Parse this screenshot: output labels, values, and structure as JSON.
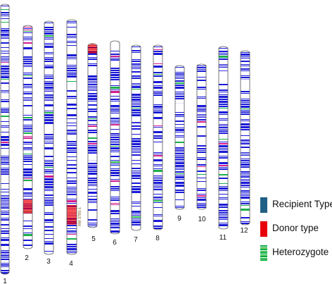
{
  "chromosomes": [
    {
      "label": "1",
      "introgressions": []
    },
    {
      "label": "2",
      "introgressions": [
        {
          "type": "donor",
          "from": 0.78,
          "to": 0.84
        }
      ]
    },
    {
      "label": "3",
      "introgressions": []
    },
    {
      "label": "4",
      "introgressions": [
        {
          "type": "donor",
          "from": 0.79,
          "to": 0.87
        }
      ],
      "marker_label": "RM 3785-1"
    },
    {
      "label": "5",
      "introgressions": [
        {
          "type": "donor",
          "from": 0.0,
          "to": 0.05
        }
      ]
    },
    {
      "label": "6",
      "introgressions": []
    },
    {
      "label": "7",
      "introgressions": []
    },
    {
      "label": "8",
      "introgressions": []
    },
    {
      "label": "9",
      "introgressions": []
    },
    {
      "label": "10",
      "introgressions": []
    },
    {
      "label": "11",
      "introgressions": []
    },
    {
      "label": "12",
      "introgressions": []
    }
  ],
  "legend": [
    {
      "label": "Recipient Type",
      "color": "#1f5f86",
      "pattern": "solid"
    },
    {
      "label": "Donor type",
      "color": "#e8000b",
      "pattern": "solid"
    },
    {
      "label": "Heterozygote",
      "color": "#19b04b",
      "pattern": "hatch"
    }
  ],
  "colors": {
    "recipient_band": "#1a1ad9",
    "donor_band": "#e8000b",
    "heterozygote_band": "#19b04b",
    "outline": "#555555"
  }
}
